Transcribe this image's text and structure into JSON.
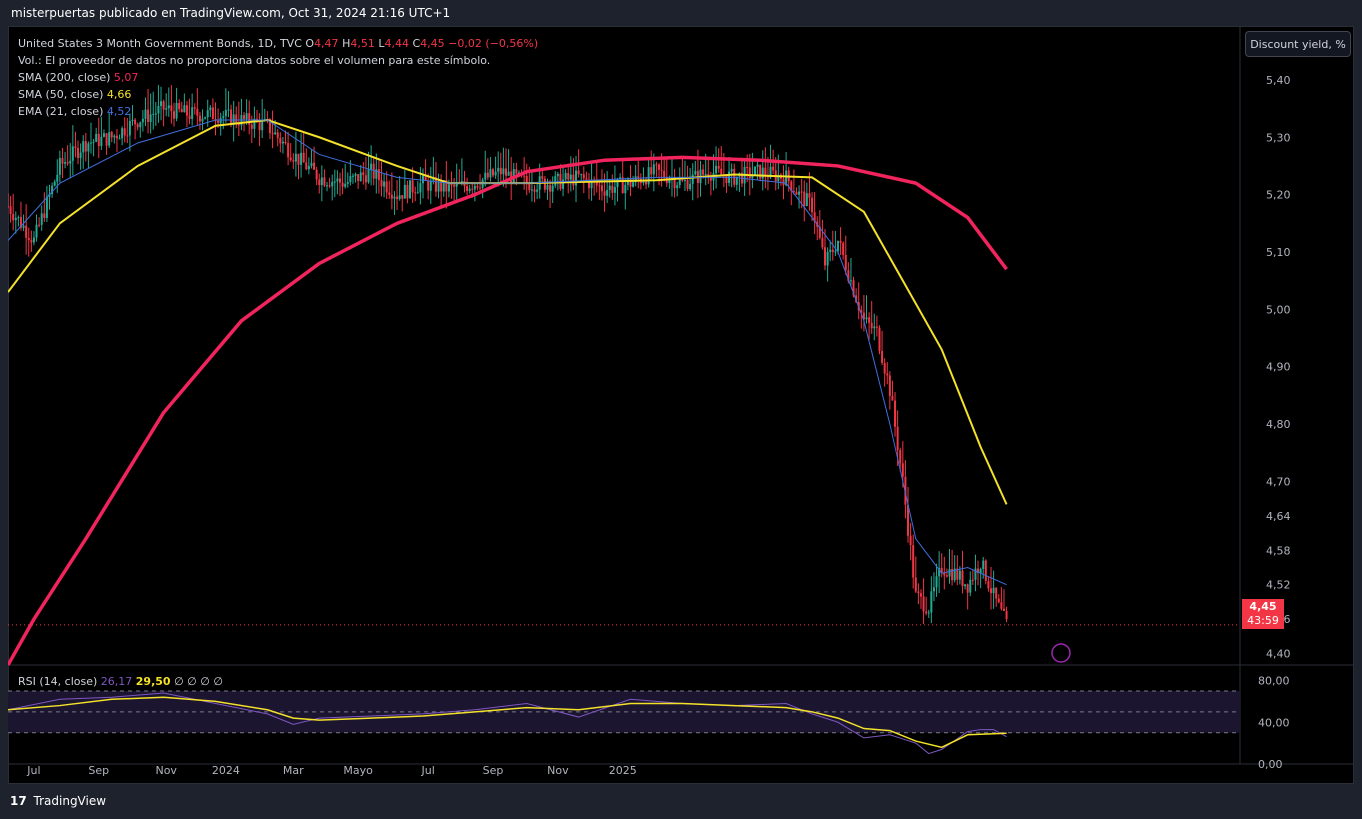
{
  "header": {
    "text": "misterpuertas publicado en TradingView.com, Oct 31, 2024 21:16 UTC+1"
  },
  "legend": {
    "symbol": "United States 3 Month Government Bonds, 1D, TVC",
    "o_label": "O",
    "o_value": "4,47",
    "h_label": "H",
    "h_value": "4,51",
    "l_label": "L",
    "l_value": "4,44",
    "c_label": "C",
    "c_value": "4,45",
    "change": "−0,02 (−0,56%)",
    "volume_note": "Vol.: El proveedor de datos no proporciona datos sobre el volumen para este símbolo.",
    "sma200_label": "SMA (200, close)",
    "sma200_value": "5,07",
    "sma50_label": "SMA (50, close)",
    "sma50_value": "4,66",
    "ema21_label": "EMA (21, close)",
    "ema21_value": "4,52"
  },
  "unit_button": "Discount yield, %",
  "last_price": {
    "value": "4,45",
    "countdown": "43:59"
  },
  "rsi_legend": {
    "label": "RSI (14, close)",
    "rsi": "26,17",
    "ma": "29,50",
    "extra": "∅ ∅ ∅ ∅"
  },
  "footer": {
    "logo": "17",
    "brand": "TradingView"
  },
  "colors": {
    "up": "#22ab94",
    "down": "#f23645",
    "sma200": "#f2245d",
    "sma50": "#f3e12a",
    "ema21": "#3f6fe0",
    "rsi": "#7e57c2",
    "rsi_ma": "#f3e12a"
  },
  "chart_data": [
    {
      "type": "line",
      "title": "United States 3 Month Government Bonds, 1D, TVC",
      "x_ticks": [
        "Jul",
        "Sep",
        "Nov",
        "2024",
        "Mar",
        "Mayo",
        "Jul",
        "Sep",
        "Nov",
        "2025"
      ],
      "y_ticks": [
        "5,40",
        "5,30",
        "5,20",
        "5,10",
        "5,00",
        "4,90",
        "4,80",
        "4,70",
        "4,64",
        "4,58",
        "4,52",
        "4,46",
        "4,40"
      ],
      "y_range": [
        4.38,
        5.48
      ],
      "last_close": 4.45,
      "series": [
        {
          "name": "SMA (200, close)",
          "color": "#f2245d",
          "x": [
            0,
            10,
            30,
            60,
            90,
            120,
            150,
            180,
            200,
            230,
            260,
            290,
            320,
            350,
            370,
            385
          ],
          "y": [
            4.38,
            4.46,
            4.6,
            4.82,
            4.98,
            5.08,
            5.15,
            5.2,
            5.24,
            5.26,
            5.265,
            5.26,
            5.25,
            5.22,
            5.16,
            5.07
          ]
        },
        {
          "name": "SMA (50, close)",
          "color": "#f3e12a",
          "x": [
            0,
            20,
            50,
            80,
            100,
            120,
            150,
            170,
            200,
            250,
            280,
            310,
            330,
            345,
            360,
            375,
            385
          ],
          "y": [
            5.03,
            5.15,
            5.25,
            5.32,
            5.33,
            5.3,
            5.25,
            5.22,
            5.22,
            5.225,
            5.235,
            5.23,
            5.17,
            5.05,
            4.93,
            4.76,
            4.66
          ]
        },
        {
          "name": "EMA (21, close)",
          "color": "#3f6fe0",
          "x": [
            0,
            20,
            50,
            80,
            100,
            120,
            150,
            170,
            200,
            250,
            280,
            300,
            320,
            330,
            340,
            350,
            360,
            370,
            385
          ],
          "y": [
            5.12,
            5.22,
            5.29,
            5.33,
            5.33,
            5.27,
            5.23,
            5.22,
            5.22,
            5.23,
            5.23,
            5.22,
            5.1,
            4.98,
            4.8,
            4.6,
            4.54,
            4.55,
            4.52
          ]
        },
        {
          "name": "Close",
          "x": [
            0,
            10,
            20,
            30,
            40,
            50,
            60,
            70,
            80,
            90,
            100,
            110,
            120,
            130,
            140,
            150,
            160,
            170,
            180,
            190,
            200,
            210,
            220,
            230,
            240,
            250,
            260,
            270,
            280,
            290,
            300,
            305,
            310,
            315,
            320,
            325,
            330,
            335,
            340,
            345,
            350,
            355,
            360,
            365,
            370,
            375,
            380,
            385
          ],
          "y": [
            5.18,
            5.12,
            5.25,
            5.29,
            5.3,
            5.33,
            5.35,
            5.34,
            5.34,
            5.33,
            5.32,
            5.27,
            5.23,
            5.22,
            5.24,
            5.2,
            5.22,
            5.21,
            5.22,
            5.24,
            5.22,
            5.22,
            5.23,
            5.21,
            5.22,
            5.24,
            5.22,
            5.24,
            5.23,
            5.24,
            5.23,
            5.2,
            5.18,
            5.08,
            5.12,
            5.05,
            4.98,
            4.96,
            4.86,
            4.7,
            4.5,
            4.48,
            4.55,
            4.54,
            4.52,
            4.56,
            4.5,
            4.45
          ]
        }
      ]
    },
    {
      "type": "line",
      "title": "RSI (14, close)",
      "y_ticks": [
        "80,00",
        "40,00",
        "0,00"
      ],
      "y_range": [
        0,
        92
      ],
      "levels": [
        70,
        50,
        30
      ],
      "series": [
        {
          "name": "RSI (14, close)",
          "color": "#7e57c2",
          "x": [
            0,
            20,
            40,
            60,
            80,
            100,
            110,
            120,
            140,
            160,
            180,
            200,
            220,
            240,
            260,
            280,
            300,
            310,
            320,
            330,
            340,
            345,
            350,
            355,
            360,
            370,
            375,
            380,
            385
          ],
          "y": [
            52,
            62,
            64,
            68,
            58,
            48,
            38,
            44,
            46,
            48,
            52,
            58,
            45,
            62,
            58,
            56,
            58,
            48,
            40,
            25,
            28,
            24,
            20,
            10,
            14,
            31,
            33,
            33,
            26.17
          ]
        },
        {
          "name": "RSI MA",
          "color": "#f3e12a",
          "x": [
            0,
            20,
            40,
            60,
            80,
            100,
            110,
            120,
            140,
            160,
            180,
            200,
            220,
            240,
            260,
            280,
            300,
            310,
            320,
            330,
            340,
            350,
            360,
            370,
            385
          ],
          "y": [
            52,
            56,
            62,
            64,
            60,
            52,
            44,
            42,
            44,
            46,
            50,
            54,
            52,
            58,
            58,
            56,
            54,
            50,
            44,
            34,
            32,
            22,
            16,
            28,
            29.5
          ]
        }
      ]
    }
  ]
}
